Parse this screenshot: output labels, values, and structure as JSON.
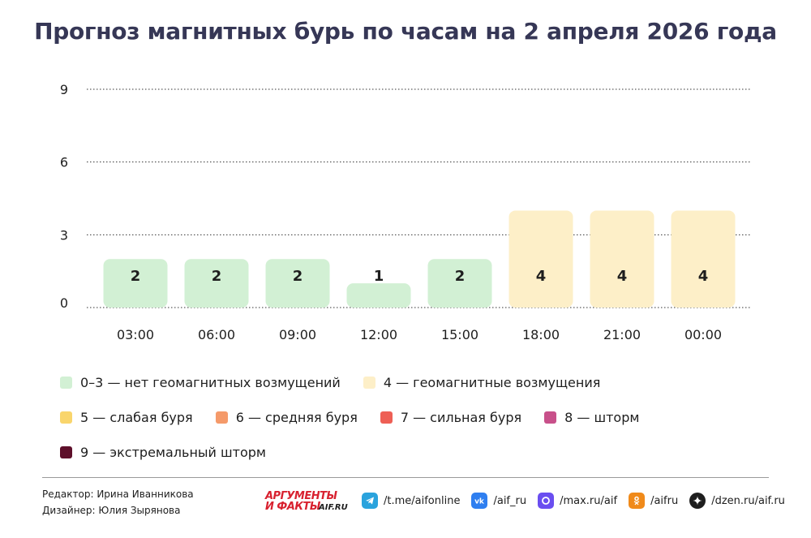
{
  "title": "Прогноз магнитных бурь по часам на 2 апреля 2026 года",
  "chart_data": {
    "type": "bar",
    "categories": [
      "03:00",
      "06:00",
      "09:00",
      "12:00",
      "15:00",
      "18:00",
      "21:00",
      "00:00"
    ],
    "values": [
      2,
      2,
      2,
      1,
      2,
      4,
      4,
      4
    ],
    "yticks": [
      0,
      3,
      6,
      9
    ],
    "ylim": [
      0,
      9
    ],
    "grid": "dotted horizontal",
    "color_scale": [
      {
        "range": "0–3",
        "color": "#d2f0d4"
      },
      {
        "range": "4",
        "color": "#fdefc8"
      },
      {
        "range": "5",
        "color": "#f9d56c"
      },
      {
        "range": "6",
        "color": "#f59a6a"
      },
      {
        "range": "7",
        "color": "#ee5f55"
      },
      {
        "range": "8",
        "color": "#c8508a"
      },
      {
        "range": "9",
        "color": "#5e0f2a"
      }
    ]
  },
  "legend": {
    "rows": [
      [
        {
          "label": "0–3 — нет геомагнитных возмущений",
          "color": "#d2f0d4"
        },
        {
          "label": "4 — геомагнитные возмущения",
          "color": "#fdefc8"
        }
      ],
      [
        {
          "label": "5 — слабая буря",
          "color": "#f9d56c"
        },
        {
          "label": "6 — средняя буря",
          "color": "#f59a6a"
        },
        {
          "label": "7 — сильная буря",
          "color": "#ee5f55"
        },
        {
          "label": "8 — шторм",
          "color": "#c8508a"
        }
      ],
      [
        {
          "label": "9 — экстремальный шторм",
          "color": "#5e0f2a"
        }
      ]
    ]
  },
  "credits": {
    "editor": "Редактор: Ирина Иванникова",
    "designer": "Дизайнер: Юлия Зырянова"
  },
  "logo": {
    "top": "АРГУМЕНТЫ",
    "bottom": "И ФАКТЫ",
    "sub": "AIF.RU"
  },
  "socials": [
    {
      "icon": "telegram-icon",
      "label": "/t.me/aifonline",
      "color": "#2aa3dd"
    },
    {
      "icon": "vk-icon",
      "label": "/aif_ru",
      "color": "#2f7ff0"
    },
    {
      "icon": "max-icon",
      "label": "/max.ru/aif",
      "color": "#6a4ef0"
    },
    {
      "icon": "odnoklassniki-icon",
      "label": "/aifru",
      "color": "#f08a1a"
    },
    {
      "icon": "dzen-icon",
      "label": "/dzen.ru/aif.ru",
      "color": "#1e1e1e"
    }
  ]
}
